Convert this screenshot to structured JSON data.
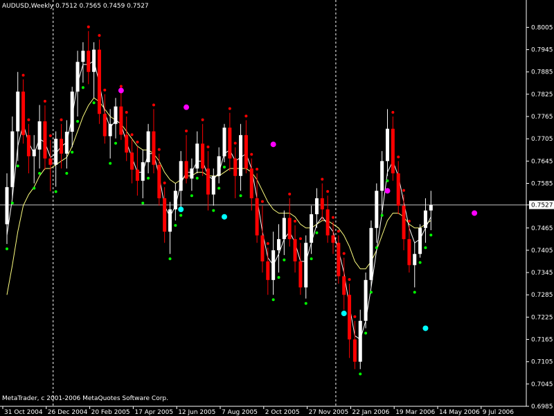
{
  "header": {
    "text": "AUDUSD,Weekly  0.7512 0.7565 0.7459 0.7527"
  },
  "footer": {
    "copyright": "MetaTrader, c 2001-2006 MetaQuotes Software Corp."
  },
  "colors": {
    "background": "#000000",
    "axis": "#ffffff",
    "bull": "#ffffff",
    "bear": "#ff0000",
    "price_line": "#c0c0c0",
    "ma_fast": "#ffffff",
    "ma_mid": "#ffff80",
    "ma_slow": "#0000ff",
    "dot_red": "#ff0000",
    "dot_green": "#00ff00",
    "dot_cyan": "#00ffff",
    "dot_magenta": "#ff00ff"
  },
  "chart_data": {
    "type": "candlestick",
    "symbol": "AUDUSD",
    "timeframe": "Weekly",
    "current_price": "0.7527",
    "y_ticks": [
      "0.8005",
      "0.7945",
      "0.7885",
      "0.7825",
      "0.7765",
      "0.7705",
      "0.7645",
      "0.7585",
      "0.7527",
      "0.7465",
      "0.7405",
      "0.7345",
      "0.7285",
      "0.7225",
      "0.7165",
      "0.7105",
      "0.7045",
      "0.6985"
    ],
    "y_range": [
      0.6985,
      0.8045
    ],
    "x_labels": [
      "31 Oct 2004",
      "26 Dec 2004",
      "20 Feb 2005",
      "17 Apr 2005",
      "12 Jun 2005",
      "7 Aug 2005",
      "2 Oct 2005",
      "27 Nov 2005",
      "22 Jan 2006",
      "19 Mar 2006",
      "14 May 2006",
      "9 Jul 2006"
    ],
    "x_label_index": [
      0,
      8,
      16,
      24,
      32,
      40,
      48,
      56,
      64,
      72,
      80,
      88
    ],
    "year_separators_index": [
      9,
      61
    ],
    "candles": [
      [
        0.7475,
        0.7612,
        0.7422,
        0.7575
      ],
      [
        0.7575,
        0.7765,
        0.7545,
        0.7725
      ],
      [
        0.7725,
        0.7885,
        0.7645,
        0.7832
      ],
      [
        0.7832,
        0.7865,
        0.7692,
        0.7715
      ],
      [
        0.7715,
        0.7745,
        0.7612,
        0.7658
      ],
      [
        0.7658,
        0.7715,
        0.7585,
        0.7676
      ],
      [
        0.7676,
        0.7796,
        0.7625,
        0.7752
      ],
      [
        0.7752,
        0.7795,
        0.7622,
        0.7652
      ],
      [
        0.7652,
        0.7702,
        0.7564,
        0.7635
      ],
      [
        0.7635,
        0.7725,
        0.7576,
        0.7705
      ],
      [
        0.7705,
        0.7745,
        0.7625,
        0.7665
      ],
      [
        0.7665,
        0.7755,
        0.7625,
        0.7724
      ],
      [
        0.7724,
        0.7845,
        0.7682,
        0.7832
      ],
      [
        0.7832,
        0.7942,
        0.7765,
        0.7912
      ],
      [
        0.7912,
        0.7965,
        0.7856,
        0.7942
      ],
      [
        0.7942,
        0.7995,
        0.7852,
        0.7885
      ],
      [
        0.7885,
        0.7965,
        0.7815,
        0.7945
      ],
      [
        0.7945,
        0.7972,
        0.7745,
        0.7772
      ],
      [
        0.7772,
        0.7825,
        0.7692,
        0.7712
      ],
      [
        0.7712,
        0.7785,
        0.7652,
        0.7745
      ],
      [
        0.7745,
        0.7815,
        0.7706,
        0.7792
      ],
      [
        0.7792,
        0.7835,
        0.7702,
        0.7716
      ],
      [
        0.7716,
        0.7765,
        0.7645,
        0.7668
      ],
      [
        0.7668,
        0.7705,
        0.7585,
        0.7622
      ],
      [
        0.7622,
        0.7685,
        0.7552,
        0.7592
      ],
      [
        0.7592,
        0.7676,
        0.7545,
        0.7642
      ],
      [
        0.7642,
        0.7745,
        0.7612,
        0.7725
      ],
      [
        0.7725,
        0.7785,
        0.7612,
        0.7635
      ],
      [
        0.7635,
        0.7665,
        0.7525,
        0.7545
      ],
      [
        0.7545,
        0.7575,
        0.7425,
        0.7455
      ],
      [
        0.7455,
        0.7535,
        0.7395,
        0.7515
      ],
      [
        0.7515,
        0.7585,
        0.7485,
        0.7565
      ],
      [
        0.7565,
        0.7672,
        0.7512,
        0.7645
      ],
      [
        0.7645,
        0.7715,
        0.7585,
        0.7598
      ],
      [
        0.7598,
        0.7652,
        0.7565,
        0.7625
      ],
      [
        0.7625,
        0.7725,
        0.7612,
        0.7692
      ],
      [
        0.7692,
        0.7745,
        0.7605,
        0.7625
      ],
      [
        0.7625,
        0.7672,
        0.7512,
        0.7555
      ],
      [
        0.7555,
        0.7625,
        0.7525,
        0.7605
      ],
      [
        0.7605,
        0.7682,
        0.7585,
        0.7658
      ],
      [
        0.7658,
        0.7745,
        0.7642,
        0.7735
      ],
      [
        0.7735,
        0.7775,
        0.7618,
        0.7652
      ],
      [
        0.7652,
        0.7682,
        0.7545,
        0.7605
      ],
      [
        0.7605,
        0.7745,
        0.7565,
        0.7715
      ],
      [
        0.7715,
        0.7755,
        0.7612,
        0.7625
      ],
      [
        0.7625,
        0.7652,
        0.7512,
        0.7545
      ],
      [
        0.7545,
        0.7612,
        0.7425,
        0.7445
      ],
      [
        0.7445,
        0.7525,
        0.7345,
        0.7375
      ],
      [
        0.7375,
        0.7412,
        0.7285,
        0.7325
      ],
      [
        0.7325,
        0.7455,
        0.7285,
        0.7405
      ],
      [
        0.7405,
        0.7475,
        0.7345,
        0.7435
      ],
      [
        0.7435,
        0.7512,
        0.7392,
        0.7492
      ],
      [
        0.7492,
        0.7545,
        0.7415,
        0.7435
      ],
      [
        0.7435,
        0.7472,
        0.7345,
        0.7375
      ],
      [
        0.7375,
        0.7425,
        0.7285,
        0.7305
      ],
      [
        0.7305,
        0.7445,
        0.7275,
        0.7425
      ],
      [
        0.7425,
        0.7525,
        0.7395,
        0.7502
      ],
      [
        0.7502,
        0.7572,
        0.7465,
        0.7545
      ],
      [
        0.7545,
        0.7585,
        0.7485,
        0.7515
      ],
      [
        0.7515,
        0.7552,
        0.7425,
        0.7445
      ],
      [
        0.7445,
        0.7482,
        0.7395,
        0.7425
      ],
      [
        0.7425,
        0.7445,
        0.7315,
        0.7335
      ],
      [
        0.7335,
        0.7385,
        0.7245,
        0.7285
      ],
      [
        0.7285,
        0.7315,
        0.7115,
        0.7165
      ],
      [
        0.7165,
        0.7215,
        0.7085,
        0.7105
      ],
      [
        0.7105,
        0.7245,
        0.7085,
        0.7215
      ],
      [
        0.7215,
        0.7345,
        0.7195,
        0.7325
      ],
      [
        0.7325,
        0.7485,
        0.7305,
        0.7465
      ],
      [
        0.7465,
        0.7585,
        0.7425,
        0.7565
      ],
      [
        0.7565,
        0.7672,
        0.7512,
        0.7645
      ],
      [
        0.7645,
        0.7785,
        0.7605,
        0.7732
      ],
      [
        0.7732,
        0.7765,
        0.7592,
        0.7612
      ],
      [
        0.7612,
        0.7645,
        0.7502,
        0.7525
      ],
      [
        0.7525,
        0.7555,
        0.7405,
        0.7435
      ],
      [
        0.7435,
        0.7472,
        0.7345,
        0.7365
      ],
      [
        0.7365,
        0.7425,
        0.7305,
        0.7395
      ],
      [
        0.7395,
        0.7475,
        0.7385,
        0.7465
      ],
      [
        0.7465,
        0.7545,
        0.7425,
        0.7512
      ],
      [
        0.7512,
        0.7565,
        0.7459,
        0.7527
      ]
    ],
    "ma_fast": [
      0.7445,
      0.7545,
      0.7685,
      0.7745,
      0.7695,
      0.7665,
      0.7705,
      0.7695,
      0.7655,
      0.7665,
      0.7685,
      0.7695,
      0.7765,
      0.7855,
      0.7905,
      0.7905,
      0.7915,
      0.7855,
      0.7775,
      0.7735,
      0.7755,
      0.7745,
      0.7695,
      0.7655,
      0.7615,
      0.7615,
      0.7665,
      0.7665,
      0.7605,
      0.7525,
      0.7495,
      0.7525,
      0.7585,
      0.7615,
      0.7615,
      0.7645,
      0.7645,
      0.7605,
      0.7595,
      0.7615,
      0.7665,
      0.7675,
      0.7645,
      0.7655,
      0.7665,
      0.7625,
      0.7545,
      0.7455,
      0.7385,
      0.7365,
      0.7395,
      0.7435,
      0.7455,
      0.7425,
      0.7375,
      0.7375,
      0.7425,
      0.7475,
      0.7495,
      0.7475,
      0.7455,
      0.7405,
      0.7345,
      0.7255,
      0.7175,
      0.7165,
      0.7215,
      0.7305,
      0.7405,
      0.7505,
      0.7615,
      0.7645,
      0.7605,
      0.7535,
      0.7465,
      0.7425,
      0.7435,
      0.7465,
      0.7495
    ],
    "ma_mid": [
      0.7285,
      0.7365,
      0.7455,
      0.7525,
      0.7555,
      0.7575,
      0.7605,
      0.7625,
      0.7625,
      0.7635,
      0.7645,
      0.7655,
      0.7685,
      0.7725,
      0.7765,
      0.7795,
      0.7815,
      0.7805,
      0.7785,
      0.7765,
      0.7755,
      0.7745,
      0.7725,
      0.7705,
      0.7685,
      0.7675,
      0.7675,
      0.7665,
      0.7645,
      0.7615,
      0.7595,
      0.7585,
      0.7595,
      0.7605,
      0.7605,
      0.7615,
      0.7615,
      0.7605,
      0.7605,
      0.7605,
      0.7615,
      0.7625,
      0.7625,
      0.7625,
      0.7625,
      0.7615,
      0.7595,
      0.7565,
      0.7535,
      0.7515,
      0.7505,
      0.7505,
      0.7505,
      0.7495,
      0.7475,
      0.7465,
      0.7465,
      0.7475,
      0.7485,
      0.7485,
      0.7475,
      0.7465,
      0.7445,
      0.7415,
      0.7375,
      0.7355,
      0.7355,
      0.7375,
      0.7405,
      0.7445,
      0.7485,
      0.7505,
      0.7505,
      0.7495,
      0.7475,
      0.7465,
      0.7465,
      0.7475,
      0.7485
    ]
  }
}
